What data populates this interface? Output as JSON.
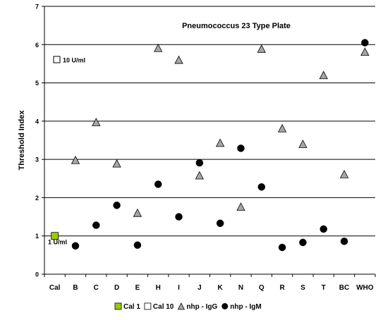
{
  "chart_data": {
    "type": "scatter",
    "title": "Pneumococcus 23 Type Plate",
    "xlabel": "",
    "ylabel": "Threshold Index",
    "categories": [
      "Cal",
      "B",
      "C",
      "D",
      "E",
      "H",
      "I",
      "J",
      "K",
      "N",
      "Q",
      "R",
      "S",
      "T",
      "BC",
      "WHO"
    ],
    "ylim": [
      0,
      7
    ],
    "yticks": [
      "0",
      "1",
      "2",
      "3",
      "4",
      "5",
      "6",
      "7"
    ],
    "grid": "horizontal",
    "legend_position": "bottom",
    "series": [
      {
        "name": "Cal 1",
        "marker": "square",
        "color": "#99cc00",
        "points": [
          {
            "x": "Cal",
            "y": 1.0
          }
        ]
      },
      {
        "name": "Cal 10",
        "marker": "square",
        "color": "#ffffff",
        "points": []
      },
      {
        "name": "nhp - IgG",
        "marker": "triangle",
        "color": "#a6a6a6",
        "points": [
          {
            "x": "B",
            "y": 2.97
          },
          {
            "x": "C",
            "y": 3.96
          },
          {
            "x": "D",
            "y": 2.88
          },
          {
            "x": "E",
            "y": 1.59
          },
          {
            "x": "H",
            "y": 5.9
          },
          {
            "x": "I",
            "y": 5.59
          },
          {
            "x": "J",
            "y": 2.57
          },
          {
            "x": "K",
            "y": 3.42
          },
          {
            "x": "N",
            "y": 1.75
          },
          {
            "x": "Q",
            "y": 5.88
          },
          {
            "x": "R",
            "y": 3.8
          },
          {
            "x": "S",
            "y": 3.39
          },
          {
            "x": "T",
            "y": 5.19
          },
          {
            "x": "BC",
            "y": 2.6
          },
          {
            "x": "WHO",
            "y": 5.8
          }
        ]
      },
      {
        "name": "nhp - IgM",
        "marker": "circle",
        "color": "#000000",
        "points": [
          {
            "x": "B",
            "y": 0.74
          },
          {
            "x": "C",
            "y": 1.28
          },
          {
            "x": "D",
            "y": 1.8
          },
          {
            "x": "E",
            "y": 0.76
          },
          {
            "x": "H",
            "y": 2.35
          },
          {
            "x": "I",
            "y": 1.5
          },
          {
            "x": "J",
            "y": 2.91
          },
          {
            "x": "K",
            "y": 1.33
          },
          {
            "x": "N",
            "y": 3.29
          },
          {
            "x": "Q",
            "y": 2.28
          },
          {
            "x": "R",
            "y": 0.7
          },
          {
            "x": "S",
            "y": 0.83
          },
          {
            "x": "T",
            "y": 1.18
          },
          {
            "x": "BC",
            "y": 0.86
          },
          {
            "x": "WHO",
            "y": 6.05
          }
        ]
      }
    ],
    "annotations": [
      {
        "text": "10 U/ml",
        "y": 5.6,
        "marker": "open-square"
      },
      {
        "text": "1 U/ml",
        "y": 0.85,
        "marker": "none"
      }
    ]
  }
}
